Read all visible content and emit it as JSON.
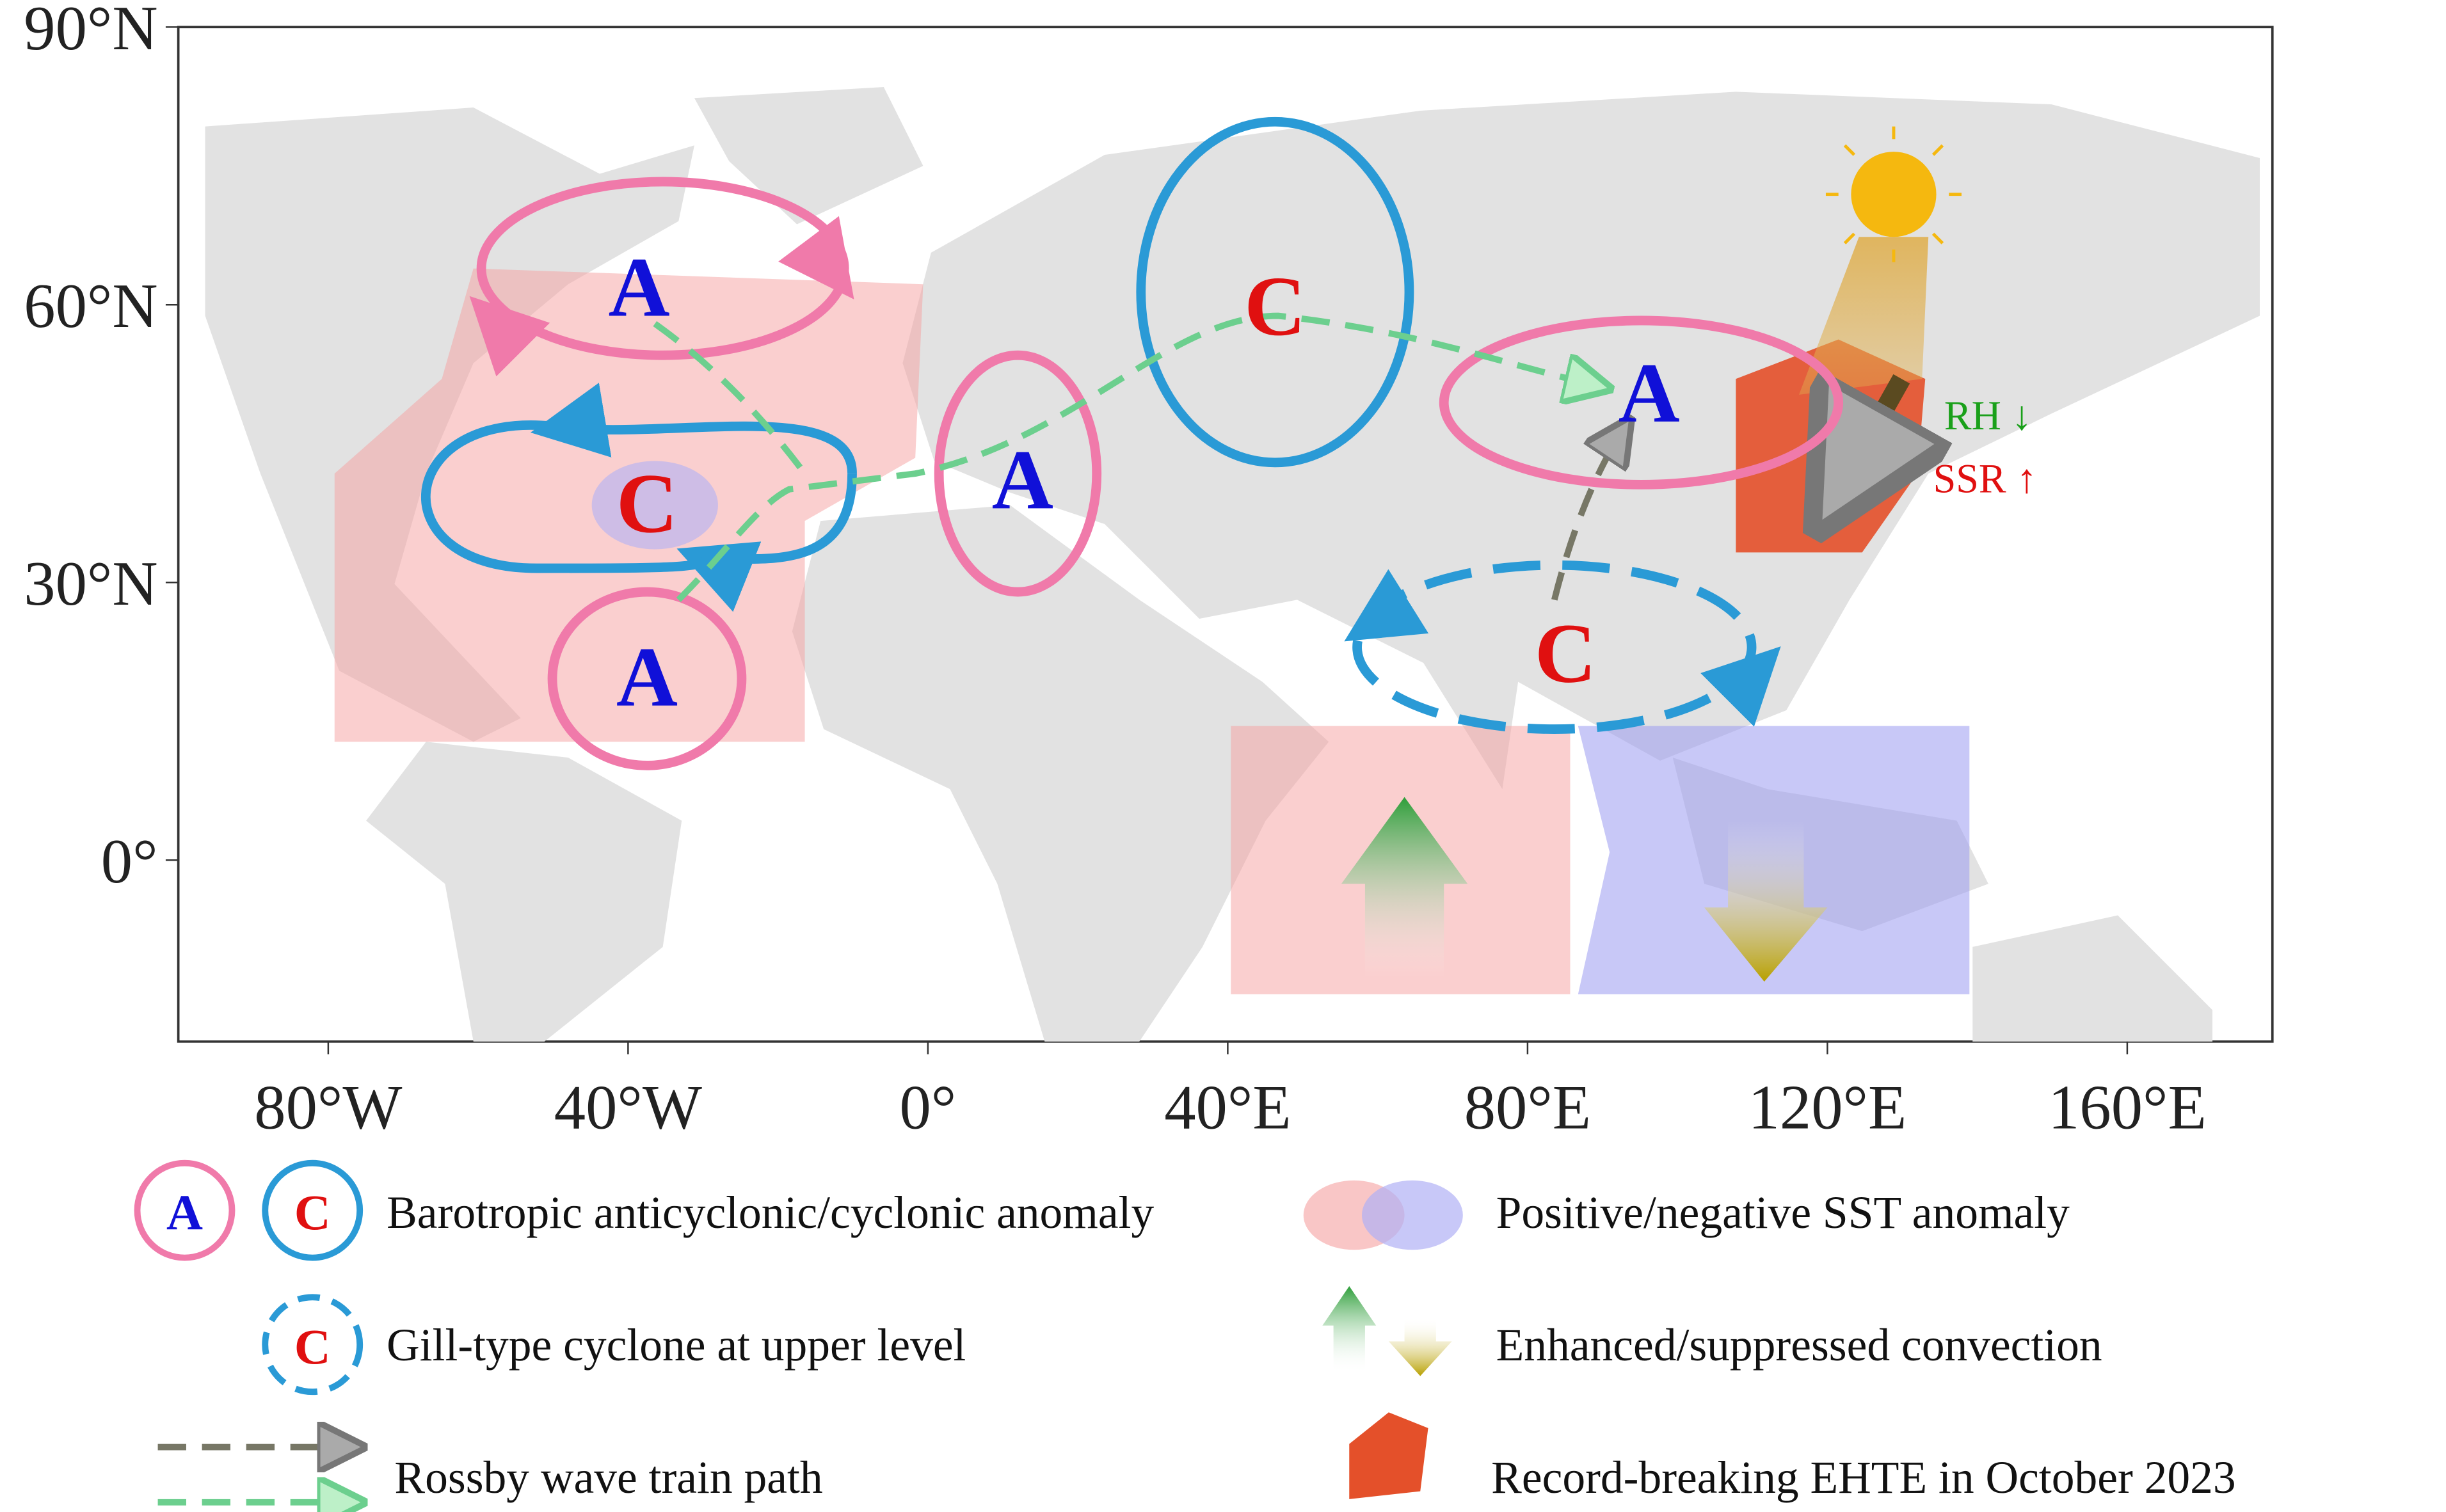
{
  "map": {
    "x_ticks": [
      "80°W",
      "40°W",
      "0°",
      "40°E",
      "80°E",
      "120°E",
      "160°E"
    ],
    "y_ticks": [
      "90°N",
      "60°N",
      "30°N",
      "0°"
    ]
  },
  "centers": [
    "A",
    "C",
    "A",
    "A",
    "C",
    "A",
    "C"
  ],
  "indicators": {
    "rh": "RH ↓",
    "ssr": "SSR ↑"
  },
  "legend": [
    {
      "icons": [
        "A",
        "C"
      ],
      "label": "Barotropic anticyclonic/cyclonic anomaly"
    },
    {
      "icons": [
        "C"
      ],
      "label": "Gill-type cyclone at upper level"
    },
    {
      "label": "Rossby wave train path"
    },
    {
      "label": "Positive/negative SST anomaly"
    },
    {
      "label": "Enhanced/suppressed convection"
    },
    {
      "label": "Record-breaking EHTE in October 2023"
    }
  ]
}
